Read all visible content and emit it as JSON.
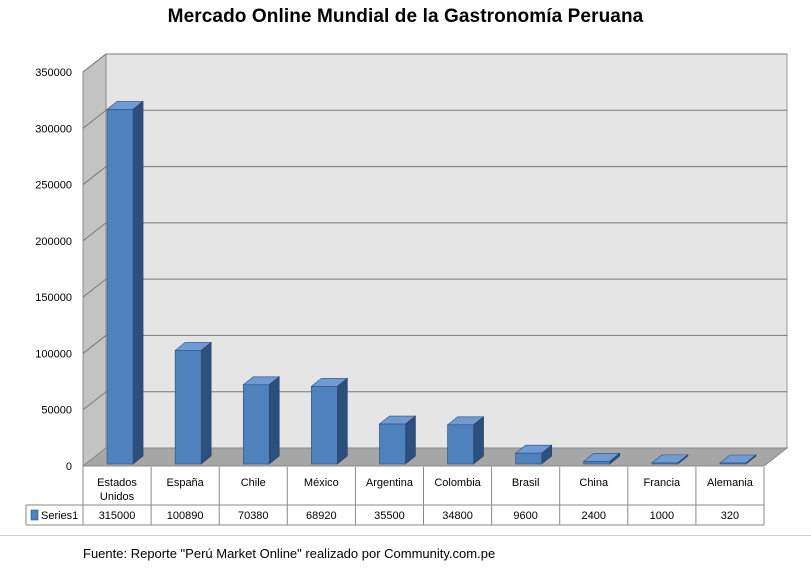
{
  "chart_data": {
    "type": "bar",
    "title": "Mercado Online Mundial de la Gastronomía Peruana",
    "categories": [
      "Estados Unidos",
      "España",
      "Chile",
      "México",
      "Argentina",
      "Colombia",
      "Brasil",
      "China",
      "Francia",
      "Alemania"
    ],
    "category_lines": [
      [
        "Estados",
        "Unidos"
      ],
      [
        "España"
      ],
      [
        "Chile"
      ],
      [
        "México"
      ],
      [
        "Argentina"
      ],
      [
        "Colombia"
      ],
      [
        "Brasil"
      ],
      [
        "China"
      ],
      [
        "Francia"
      ],
      [
        "Alemania"
      ]
    ],
    "series": [
      {
        "name": "Series1",
        "values": [
          315000,
          100890,
          70380,
          68920,
          35500,
          34800,
          9600,
          2400,
          1000,
          320
        ]
      }
    ],
    "ylim": [
      0,
      350000
    ],
    "yticks": [
      0,
      50000,
      100000,
      150000,
      200000,
      250000,
      300000,
      350000
    ],
    "ytick_labels": [
      "0",
      "50000",
      "100000",
      "150000",
      "200000",
      "250000",
      "300000",
      "350000"
    ],
    "grid": true,
    "three_d": true,
    "data_table": true,
    "xlabel": "",
    "ylabel": "",
    "colors": {
      "bar_front": "#4f81bd",
      "bar_top": "#6f9ad3",
      "bar_side": "#2c4f7c",
      "wall": "#e5e5e5",
      "floor": "#a6a6a6",
      "left_wall": "#c3c3c3"
    }
  },
  "source_note": "Fuente: Reporte \"Perú Market Online\" realizado por Community.com.pe"
}
